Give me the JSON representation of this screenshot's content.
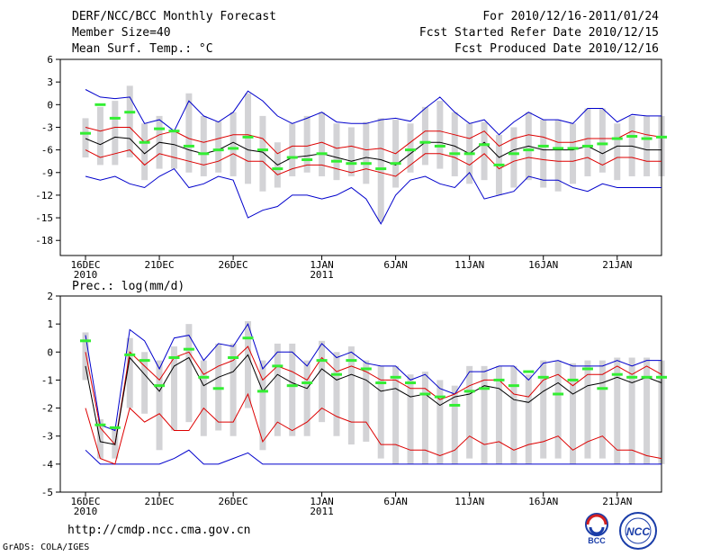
{
  "header": {
    "title": "DERF/NCC/BCC Monthly Forecast",
    "member_size": "Member Size=40",
    "variable": "Mean Surf. Temp.: °C",
    "period": "For 2010/12/16-2011/01/24",
    "fcst_started": "Fcst Started Refer Date 2010/12/15",
    "fcst_produced": "Fcst Produced Date 2010/12/16"
  },
  "footer": {
    "url": "http://cmdp.ncc.cma.gov.cn",
    "credit": "GrADS: COLA/IGES"
  },
  "logos": {
    "left": "BCC",
    "right": "NCC"
  },
  "colors": {
    "box": "#d3d3d6",
    "obs": "#33ee33",
    "envelope": "#0000cc",
    "quartile": "#dd0000",
    "median": "#000000"
  },
  "chart_data": [
    {
      "type": "box-ensemble",
      "title": "Mean Surf. Temp.: °C",
      "ylim": [
        -20,
        6
      ],
      "yticks": [
        6,
        3,
        0,
        -3,
        -6,
        -9,
        -12,
        -15,
        -18
      ],
      "xticks": [
        {
          "day": 0,
          "label": "16DEC",
          "sub": "2010"
        },
        {
          "day": 5,
          "label": "21DEC",
          "sub": ""
        },
        {
          "day": 10,
          "label": "26DEC",
          "sub": ""
        },
        {
          "day": 16,
          "label": "1JAN",
          "sub": "2011"
        },
        {
          "day": 21,
          "label": "6JAN",
          "sub": ""
        },
        {
          "day": 26,
          "label": "11JAN",
          "sub": ""
        },
        {
          "day": 31,
          "label": "16JAN",
          "sub": ""
        },
        {
          "day": 36,
          "label": "21JAN",
          "sub": ""
        }
      ],
      "days": 40,
      "max": [
        2,
        1,
        0.8,
        1,
        -2.5,
        -2,
        -3.5,
        0.5,
        -1.5,
        -2.3,
        -1,
        1.8,
        0.5,
        -1.5,
        -2.5,
        -1.8,
        -1,
        -2.3,
        -2.5,
        -2.5,
        -2,
        -1.8,
        -2.2,
        -0.5,
        1,
        -1,
        -2.5,
        -2,
        -4,
        -2.3,
        -1,
        -2,
        -2,
        -2.5,
        -0.5,
        -0.5,
        -2.3,
        -1.3,
        -1.5,
        -1.5
      ],
      "q_high": [
        -3,
        -3.5,
        -3,
        -3,
        -5,
        -4,
        -3.5,
        -4.5,
        -5,
        -4.5,
        -4,
        -4,
        -4.5,
        -6.5,
        -5.5,
        -5.5,
        -5,
        -5.8,
        -5.5,
        -6,
        -5.8,
        -6.5,
        -5,
        -3.5,
        -3.5,
        -4,
        -4.5,
        -3.5,
        -5.5,
        -4.5,
        -4,
        -4.3,
        -5,
        -5,
        -4.5,
        -4.5,
        -4.5,
        -3.5,
        -4,
        -4.3
      ],
      "median": [
        -4.5,
        -5.3,
        -4.3,
        -4.5,
        -6.5,
        -5,
        -5.3,
        -6,
        -6.5,
        -6,
        -5,
        -6,
        -6.3,
        -8,
        -7,
        -6.8,
        -6.5,
        -7,
        -7.5,
        -7,
        -7.3,
        -8,
        -6.5,
        -5,
        -5,
        -5.5,
        -6.5,
        -5,
        -7,
        -6,
        -5.5,
        -6,
        -6,
        -6,
        -5.5,
        -6.5,
        -5.5,
        -5.5,
        -6,
        -6
      ],
      "q_low": [
        -6,
        -7,
        -6.5,
        -6,
        -8,
        -6.5,
        -7,
        -7.5,
        -8,
        -7.5,
        -6.5,
        -7.5,
        -7.5,
        -9.3,
        -8.5,
        -8,
        -8,
        -8.5,
        -9,
        -8.5,
        -9,
        -9.5,
        -8,
        -6.5,
        -6.5,
        -7,
        -8,
        -6.5,
        -8.5,
        -7.5,
        -7,
        -7.3,
        -7.5,
        -7.5,
        -7,
        -8,
        -7,
        -7,
        -7.5,
        -7.5
      ],
      "min": [
        -9.5,
        -10,
        -9.5,
        -10.5,
        -11,
        -9.5,
        -8.5,
        -11,
        -10.5,
        -9.5,
        -10,
        -15,
        -14,
        -13.5,
        -12,
        -12,
        -12.5,
        -12,
        -11,
        -12.5,
        -15.8,
        -12,
        -10,
        -9.5,
        -10.5,
        -11,
        -9,
        -12.5,
        -12,
        -11.5,
        -9.5,
        -10,
        -10,
        -11,
        -11.5,
        -10.5,
        -11,
        -11,
        -11,
        -11
      ],
      "box_top": [
        -1.8,
        -0.3,
        0.5,
        2.5,
        -2.5,
        -1.5,
        -3.5,
        1.5,
        -1.5,
        -2.2,
        -1,
        1.5,
        -1.5,
        -5,
        -2.5,
        -1.5,
        -1,
        -2.5,
        -3,
        -2.3,
        -1.8,
        -2,
        -2.5,
        -0.3,
        0.5,
        -1,
        -2.5,
        -2.3,
        -4,
        -3,
        -1,
        -2,
        -2,
        -2.5,
        -0.5,
        -0.5,
        -2.5,
        -1.5,
        -1.5,
        -1.5
      ],
      "box_bottom": [
        -7,
        -8,
        -8,
        -7,
        -10,
        -8.5,
        -8.5,
        -9,
        -9.5,
        -9,
        -9.5,
        -10.5,
        -11.5,
        -11,
        -9.5,
        -9,
        -9.5,
        -10,
        -9.5,
        -10.5,
        -15.5,
        -11,
        -9,
        -8,
        -8.5,
        -9.5,
        -10.5,
        -10,
        -12,
        -11,
        -10,
        -11,
        -11.5,
        -10.5,
        -9.5,
        -9,
        -10,
        -9.5,
        -9.5,
        -9.5
      ],
      "observed": [
        -3.8,
        0,
        -1.8,
        -1,
        -5,
        -3.2,
        -3.5,
        -5.5,
        -6.5,
        -6,
        -5.8,
        -4.3,
        -6,
        -8.5,
        -7,
        -7.3,
        -6.5,
        -7.5,
        -7.8,
        -7.8,
        -8.5,
        -7.8,
        -6,
        -5,
        -5.5,
        -6.5,
        -6.5,
        -5.3,
        -8,
        -6.5,
        -6,
        -5.5,
        -5.8,
        -5.8,
        -5.5,
        -5.2,
        -4.5,
        -4.2,
        -4.5,
        -4.3
      ]
    },
    {
      "type": "box-ensemble",
      "title": "Prec.: log(mm/d)",
      "ylim": [
        -5,
        2
      ],
      "yticks": [
        2,
        1,
        0,
        -1,
        -2,
        -3,
        -4,
        -5
      ],
      "xticks": [
        {
          "day": 0,
          "label": "16DEC",
          "sub": "2010"
        },
        {
          "day": 5,
          "label": "21DEC",
          "sub": ""
        },
        {
          "day": 10,
          "label": "26DEC",
          "sub": ""
        },
        {
          "day": 16,
          "label": "1JAN",
          "sub": "2011"
        },
        {
          "day": 21,
          "label": "6JAN",
          "sub": ""
        },
        {
          "day": 26,
          "label": "11JAN",
          "sub": ""
        },
        {
          "day": 31,
          "label": "16JAN",
          "sub": ""
        },
        {
          "day": 36,
          "label": "21JAN",
          "sub": ""
        }
      ],
      "days": 40,
      "max": [
        0.6,
        -2.6,
        -2.8,
        0.8,
        0.4,
        -0.6,
        0.5,
        0.6,
        -0.3,
        0.3,
        0.2,
        1,
        -0.6,
        0,
        0,
        -0.5,
        0.3,
        -0.2,
        0,
        -0.4,
        -0.5,
        -0.5,
        -1,
        -0.8,
        -1.3,
        -1.5,
        -0.7,
        -0.7,
        -0.5,
        -0.5,
        -1,
        -0.4,
        -0.3,
        -0.5,
        -0.5,
        -0.5,
        -0.3,
        -0.5,
        -0.3,
        -0.3
      ],
      "q_high": [
        0,
        -2.7,
        -3.3,
        0,
        -0.5,
        -1,
        -0.2,
        0,
        -0.8,
        -0.5,
        -0.3,
        0.2,
        -1,
        -0.5,
        -0.7,
        -1,
        -0.2,
        -0.7,
        -0.5,
        -0.7,
        -1,
        -1,
        -1.3,
        -1.3,
        -1.7,
        -1.5,
        -1.2,
        -1,
        -1,
        -1.5,
        -1.6,
        -1,
        -0.8,
        -1.2,
        -0.8,
        -0.8,
        -0.5,
        -0.8,
        -0.5,
        -0.8
      ],
      "median": [
        -0.5,
        -3.2,
        -3.3,
        -0.2,
        -0.8,
        -1.4,
        -0.5,
        -0.2,
        -1.2,
        -0.9,
        -0.7,
        -0.1,
        -1.4,
        -0.8,
        -1.1,
        -1.3,
        -0.6,
        -1,
        -0.8,
        -1,
        -1.4,
        -1.3,
        -1.6,
        -1.5,
        -1.9,
        -1.6,
        -1.5,
        -1.2,
        -1.3,
        -1.7,
        -1.8,
        -1.4,
        -1.1,
        -1.5,
        -1.2,
        -1.1,
        -0.9,
        -1.1,
        -0.9,
        -1.1
      ],
      "q_low": [
        -2,
        -3.8,
        -4,
        -2,
        -2.5,
        -2.2,
        -2.8,
        -2.8,
        -2,
        -2.5,
        -2.5,
        -1.5,
        -3.2,
        -2.5,
        -2.8,
        -2.5,
        -2,
        -2.3,
        -2.5,
        -2.5,
        -3.3,
        -3.3,
        -3.5,
        -3.5,
        -3.7,
        -3.5,
        -3,
        -3.3,
        -3.2,
        -3.5,
        -3.3,
        -3.2,
        -3,
        -3.5,
        -3.2,
        -3,
        -3.5,
        -3.5,
        -3.7,
        -3.8
      ],
      "min": [
        -3.5,
        -4,
        -4,
        -4,
        -4,
        -4,
        -3.8,
        -3.5,
        -4,
        -4,
        -3.8,
        -3.6,
        -4,
        -4,
        -4,
        -4,
        -4,
        -4,
        -4,
        -4,
        -4,
        -4,
        -4,
        -4,
        -4,
        -4,
        -4,
        -4,
        -4,
        -4,
        -4,
        -4,
        -4,
        -4,
        -4,
        -4,
        -4,
        -4,
        -4,
        -4
      ],
      "box_top": [
        0.7,
        -2.4,
        -2.7,
        0.5,
        0,
        -0.3,
        0.2,
        1,
        -0.3,
        0.3,
        0.3,
        1.1,
        -0.3,
        0.3,
        0.3,
        -0.3,
        0.4,
        0,
        0.2,
        -0.3,
        -0.5,
        -0.5,
        -0.8,
        -0.7,
        -1,
        -1.2,
        -0.5,
        -0.5,
        -0.5,
        -0.5,
        -0.8,
        -0.3,
        -0.3,
        -0.4,
        -0.3,
        -0.3,
        -0.2,
        -0.2,
        -0.2,
        -0.3
      ],
      "box_bottom": [
        -1,
        -3.8,
        -3.8,
        -2,
        -2.2,
        -3.5,
        -2.8,
        -2.5,
        -3,
        -2.8,
        -3,
        -2,
        -3.5,
        -3,
        -3,
        -3,
        -2.5,
        -3,
        -3.3,
        -3.2,
        -3.8,
        -4,
        -4,
        -4,
        -4,
        -4,
        -3.8,
        -4,
        -4,
        -4,
        -4,
        -3.8,
        -3.8,
        -4,
        -3.8,
        -3.8,
        -4,
        -4,
        -4,
        -4
      ],
      "observed": [
        0.4,
        -2.6,
        -2.7,
        -0.1,
        -0.3,
        -1.2,
        -0.2,
        0.1,
        -0.9,
        -1.3,
        -0.2,
        0.5,
        -1.4,
        -0.5,
        -1.2,
        -1.1,
        -0.3,
        -0.8,
        -0.3,
        -0.6,
        -1.1,
        -0.9,
        -1.1,
        -1.5,
        -1.6,
        -1.9,
        -1.4,
        -1.3,
        -1,
        -1.2,
        -0.7,
        -0.9,
        -1.5,
        -1,
        -0.6,
        -1.3,
        -0.8,
        -0.9,
        -0.9,
        -0.9
      ]
    }
  ]
}
